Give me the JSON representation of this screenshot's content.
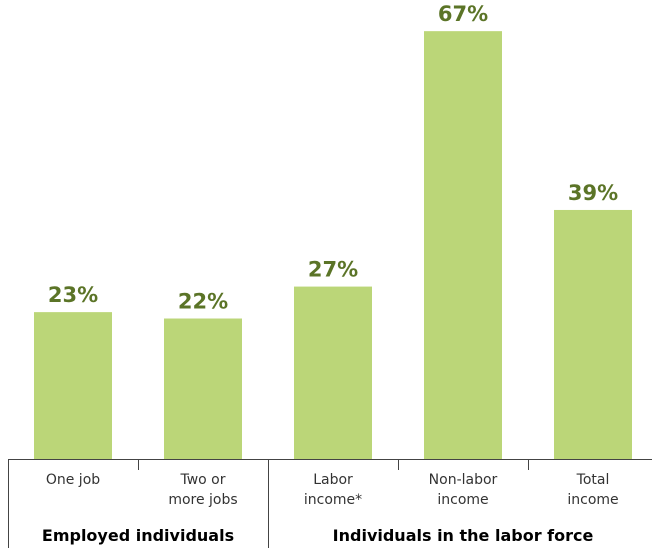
{
  "chart_data": {
    "type": "bar",
    "categories": [
      [
        "One job"
      ],
      [
        "Two or",
        "more jobs"
      ],
      [
        "Labor",
        "income*"
      ],
      [
        "Non-labor",
        "income"
      ],
      [
        "Total",
        "income"
      ]
    ],
    "values": [
      23,
      22,
      27,
      67,
      39
    ],
    "value_labels": [
      "23%",
      "22%",
      "27%",
      "67%",
      "39%"
    ],
    "category_groups": [
      {
        "label": "Employed individuals",
        "span": [
          0,
          1
        ]
      },
      {
        "label": "Individuals in the labor force",
        "span": [
          2,
          4
        ]
      }
    ],
    "ylim": [
      0,
      70
    ],
    "grid": false,
    "legend": false,
    "colors": {
      "bar": "#bbd678",
      "value_label": "#5b7427",
      "axis": "#444444"
    }
  }
}
